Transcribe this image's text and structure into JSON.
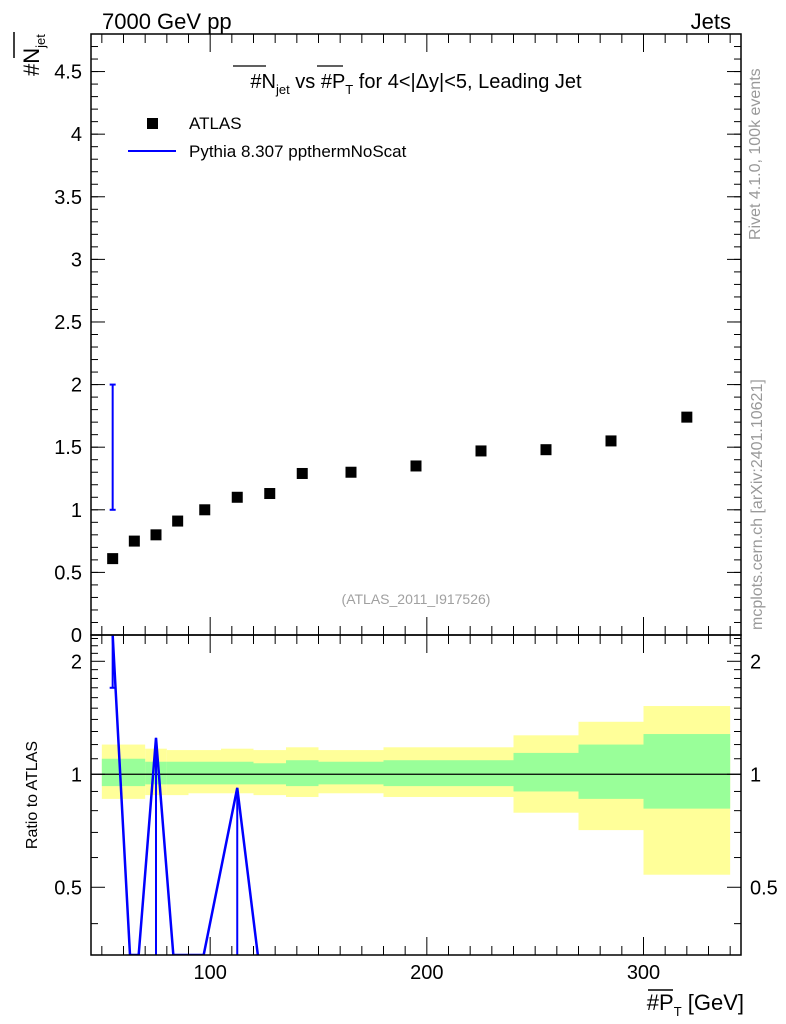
{
  "header": {
    "energy_label": "7000 GeV pp",
    "process_label": "Jets"
  },
  "side_labels": {
    "rivet": "Rivet 4.1.0,  100k events",
    "mcplots": "mcplots.cern.ch [arXiv:2401.10621]"
  },
  "chart_data": [
    {
      "type": "scatter",
      "title": "#N_jet vs #P_T for 4<|Δy|<5, Leading Jet",
      "title_parts": {
        "n_base": "#N",
        "n_sub": "jet",
        "mid": " vs #",
        "p_base": "P",
        "p_sub": "T",
        "suffix": " for 4<|Δy|<5, Leading Jet"
      },
      "ylabel": "#N_jet",
      "ylabel_parts": {
        "base": "#N",
        "sub": "jet"
      },
      "xlim": [
        45,
        345
      ],
      "ylim": [
        0,
        4.8
      ],
      "yticks": [
        0,
        0.5,
        1,
        1.5,
        2,
        2.5,
        3,
        3.5,
        4,
        4.5
      ],
      "ytick_labels": [
        "0",
        "0.5",
        "1",
        "1.5",
        "2",
        "2.5",
        "3",
        "3.5",
        "4",
        "4.5"
      ],
      "watermark": "(ATLAS_2011_I917526)",
      "legend": [
        {
          "name": "ATLAS",
          "style": "marker",
          "color": "#000000"
        },
        {
          "name": "Pythia 8.307 ppthermNoScat",
          "style": "line",
          "color": "#0000ff"
        }
      ],
      "series": [
        {
          "name": "ATLAS",
          "color": "#000000",
          "x": [
            55,
            65,
            75,
            85,
            97.5,
            112.5,
            127.5,
            142.5,
            165,
            195,
            225,
            255,
            285,
            320
          ],
          "y": [
            0.61,
            0.75,
            0.8,
            0.91,
            1.0,
            1.1,
            1.13,
            1.29,
            1.3,
            1.35,
            1.47,
            1.48,
            1.55,
            1.74
          ]
        },
        {
          "name": "Pythia 8.307 ppthermNoScat",
          "color": "#0000ff",
          "x": [
            55
          ],
          "y": [
            1.5
          ],
          "yerr": [
            [
              1.0,
              2.0
            ]
          ]
        }
      ]
    },
    {
      "type": "line",
      "title": "",
      "xlabel": "#P_T [GeV]",
      "xlabel_parts": {
        "prefix": "#",
        "base": "P",
        "sub": "T",
        "unit": " [GeV]"
      },
      "ylabel": "Ratio to ATLAS",
      "xlim": [
        45,
        345
      ],
      "ylim": [
        0.33,
        2.35
      ],
      "yscale": "log",
      "xticks": [
        100,
        200,
        300
      ],
      "xtick_labels": [
        "100",
        "200",
        "300"
      ],
      "yticks": [
        0.5,
        1,
        2
      ],
      "ytick_labels": [
        "0.5",
        "1",
        "2"
      ],
      "reference_line": 1,
      "bands": {
        "bin_edges": [
          50,
          60,
          70,
          80,
          90,
          105,
          120,
          135,
          150,
          180,
          210,
          240,
          270,
          300,
          340
        ],
        "total_lower": [
          0.86,
          0.86,
          0.88,
          0.88,
          0.89,
          0.89,
          0.88,
          0.87,
          0.89,
          0.87,
          0.87,
          0.79,
          0.71,
          0.54
        ],
        "total_upper": [
          1.2,
          1.2,
          1.17,
          1.16,
          1.16,
          1.17,
          1.16,
          1.18,
          1.16,
          1.18,
          1.18,
          1.27,
          1.38,
          1.52
        ],
        "stat_lower": [
          0.93,
          0.93,
          0.94,
          0.94,
          0.94,
          0.94,
          0.94,
          0.93,
          0.94,
          0.93,
          0.93,
          0.9,
          0.86,
          0.81
        ],
        "stat_upper": [
          1.1,
          1.1,
          1.08,
          1.08,
          1.08,
          1.08,
          1.07,
          1.09,
          1.08,
          1.09,
          1.09,
          1.14,
          1.2,
          1.28
        ],
        "total_color": "#ffff99",
        "stat_color": "#99ff99"
      },
      "series": [
        {
          "name": "Pythia 8.307 ppthermNoScat / ATLAS",
          "color": "#0000ff",
          "x": [
            55,
            63,
            67,
            75,
            83,
            97,
            112.5,
            122
          ],
          "y": [
            2.35,
            0.33,
            0.33,
            1.25,
            0.33,
            0.33,
            0.92,
            0.33
          ],
          "error_bars": [
            {
              "x": 55,
              "low": 1.7,
              "high": 2.35
            },
            {
              "x": 75,
              "low": 0.33,
              "high": 1.25
            },
            {
              "x": 112.5,
              "low": 0.33,
              "high": 0.92
            }
          ]
        }
      ]
    }
  ]
}
